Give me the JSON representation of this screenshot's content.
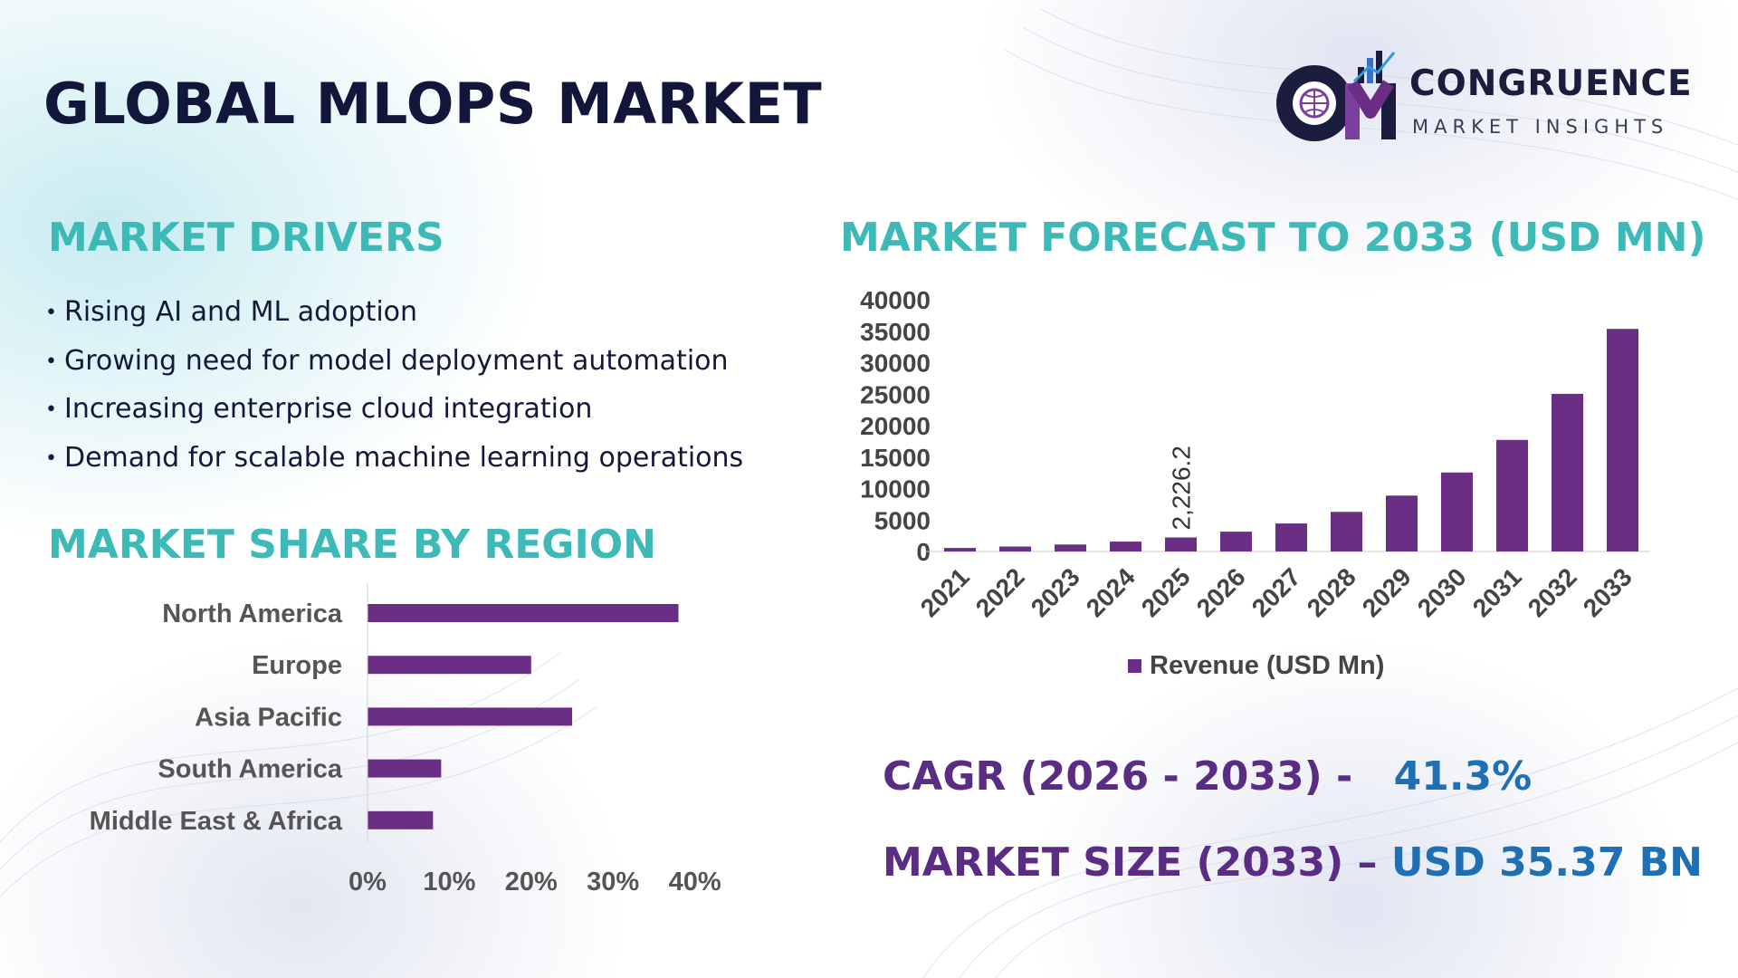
{
  "title": "GLOBAL MLOPS MARKET",
  "logo": {
    "initials": "CM",
    "name": "CONGRUENCE",
    "tagline": "MARKET INSIGHTS"
  },
  "drivers": {
    "heading": "MARKET DRIVERS",
    "bullet": "•",
    "items": [
      "Rising AI and ML adoption",
      "Growing need for model deployment automation",
      "Increasing enterprise cloud integration",
      "Demand for scalable machine learning operations"
    ]
  },
  "region": {
    "heading": "MARKET SHARE BY REGION"
  },
  "forecast": {
    "heading": "MARKET FORECAST TO 2033 (USD MN)"
  },
  "kpis": {
    "cagr_label": "CAGR (2026 - 2033) -",
    "cagr_value": "41.3%",
    "size_label": "MARKET SIZE (2033) –",
    "size_value": "USD 35.37 BN"
  },
  "colors": {
    "bar": "#6a2f85",
    "teal": "#3dbab7",
    "navy": "#12163a",
    "purple": "#5b2c83",
    "blue": "#1f6fb5"
  },
  "chart_data": [
    {
      "type": "bar",
      "orientation": "vertical",
      "title": "MARKET FORECAST TO 2033 (USD MN)",
      "categories": [
        "2021",
        "2022",
        "2023",
        "2024",
        "2025",
        "2026",
        "2027",
        "2028",
        "2029",
        "2030",
        "2031",
        "2032",
        "2033"
      ],
      "series": [
        {
          "name": "Revenue (USD Mn)",
          "values": [
            560,
            790,
            1110,
            1570,
            2226.2,
            3150,
            4450,
            6290,
            8880,
            12550,
            17730,
            25050,
            35370
          ]
        }
      ],
      "data_labels": [
        {
          "category": "2025",
          "text": "2,226.2"
        }
      ],
      "ylim": [
        0,
        40000
      ],
      "yticks": [
        "40000",
        "35000",
        "30000",
        "25000",
        "20000",
        "15000",
        "10000",
        "5000",
        "0"
      ],
      "legend": "bottom"
    },
    {
      "type": "bar",
      "orientation": "horizontal",
      "title": "MARKET SHARE BY REGION",
      "categories": [
        "North America",
        "Europe",
        "Asia Pacific",
        "South America",
        "Middle East & Africa"
      ],
      "series": [
        {
          "name": "Market Share",
          "values": [
            38,
            20,
            25,
            9,
            8
          ]
        }
      ],
      "xlim": [
        0,
        40
      ],
      "xticks": [
        "0%",
        "10%",
        "20%",
        "30%",
        "40%"
      ]
    }
  ]
}
